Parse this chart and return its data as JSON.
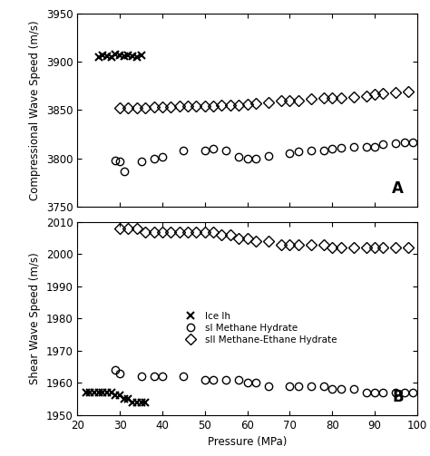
{
  "panel_A": {
    "ice_x": [
      25,
      26,
      27,
      28,
      29,
      30,
      31,
      32,
      33,
      34,
      35
    ],
    "ice_y": [
      3905,
      3907,
      3906,
      3905,
      3908,
      3907,
      3906,
      3907,
      3906,
      3905,
      3907
    ],
    "sI_x": [
      29,
      30,
      31,
      35,
      38,
      40,
      45,
      50,
      52,
      55,
      58,
      60,
      62,
      65,
      70,
      72,
      75,
      78,
      80,
      82,
      85,
      88,
      90,
      92,
      95,
      97,
      99
    ],
    "sI_y": [
      3798,
      3797,
      3787,
      3797,
      3800,
      3802,
      3808,
      3808,
      3810,
      3808,
      3802,
      3800,
      3800,
      3803,
      3805,
      3807,
      3808,
      3808,
      3810,
      3811,
      3812,
      3812,
      3812,
      3815,
      3816,
      3817,
      3817
    ],
    "sII_x": [
      30,
      32,
      34,
      36,
      38,
      40,
      42,
      44,
      46,
      48,
      50,
      52,
      54,
      56,
      58,
      60,
      62,
      65,
      68,
      70,
      72,
      75,
      78,
      80,
      82,
      85,
      88,
      90,
      92,
      95,
      98
    ],
    "sII_y": [
      3852,
      3852,
      3852,
      3852,
      3853,
      3853,
      3853,
      3854,
      3854,
      3854,
      3854,
      3854,
      3855,
      3855,
      3855,
      3856,
      3857,
      3858,
      3860,
      3860,
      3860,
      3862,
      3863,
      3863,
      3863,
      3864,
      3865,
      3866,
      3867,
      3868,
      3869
    ],
    "ylabel": "Compressional Wave Speed (m/s)",
    "ylim": [
      3750,
      3950
    ],
    "yticks": [
      3750,
      3800,
      3850,
      3900,
      3950
    ],
    "label": "A"
  },
  "panel_B": {
    "ice_x": [
      22,
      23,
      24,
      25,
      26,
      27,
      28,
      29,
      30,
      31,
      32,
      33,
      34,
      35,
      36
    ],
    "ice_y": [
      1957,
      1957,
      1957,
      1957,
      1957,
      1957,
      1957,
      1956,
      1956,
      1955,
      1955,
      1954,
      1954,
      1954,
      1954
    ],
    "sI_x": [
      29,
      30,
      35,
      38,
      40,
      45,
      50,
      52,
      55,
      58,
      60,
      62,
      65,
      70,
      72,
      75,
      78,
      80,
      82,
      85,
      88,
      90,
      92,
      95,
      97,
      99
    ],
    "sI_y": [
      1964,
      1963,
      1962,
      1962,
      1962,
      1962,
      1961,
      1961,
      1961,
      1961,
      1960,
      1960,
      1959,
      1959,
      1959,
      1959,
      1959,
      1958,
      1958,
      1958,
      1957,
      1957,
      1957,
      1957,
      1957,
      1957
    ],
    "sII_x": [
      30,
      32,
      34,
      36,
      38,
      40,
      42,
      44,
      46,
      48,
      50,
      52,
      54,
      56,
      58,
      60,
      62,
      65,
      68,
      70,
      72,
      75,
      78,
      80,
      82,
      85,
      88,
      90,
      92,
      95,
      98
    ],
    "sII_y": [
      2008,
      2008,
      2008,
      2007,
      2007,
      2007,
      2007,
      2007,
      2007,
      2007,
      2007,
      2007,
      2006,
      2006,
      2005,
      2005,
      2004,
      2004,
      2003,
      2003,
      2003,
      2003,
      2003,
      2002,
      2002,
      2002,
      2002,
      2002,
      2002,
      2002,
      2002
    ],
    "ylabel": "Shear Wave Speed (m/s)",
    "ylim": [
      1950,
      2010
    ],
    "yticks": [
      1950,
      1960,
      1970,
      1980,
      1990,
      2000,
      2010
    ],
    "label": "B"
  },
  "xlabel": "Pressure (MPa)",
  "xlim": [
    20,
    100
  ],
  "xticks": [
    20,
    30,
    40,
    50,
    60,
    70,
    80,
    90,
    100
  ],
  "legend_labels": [
    "Ice Ih",
    "sI Methane Hydrate",
    "sII Methane-Ethane Hydrate"
  ],
  "marker_size": 6,
  "facecolor": "white",
  "edgecolor": "black"
}
